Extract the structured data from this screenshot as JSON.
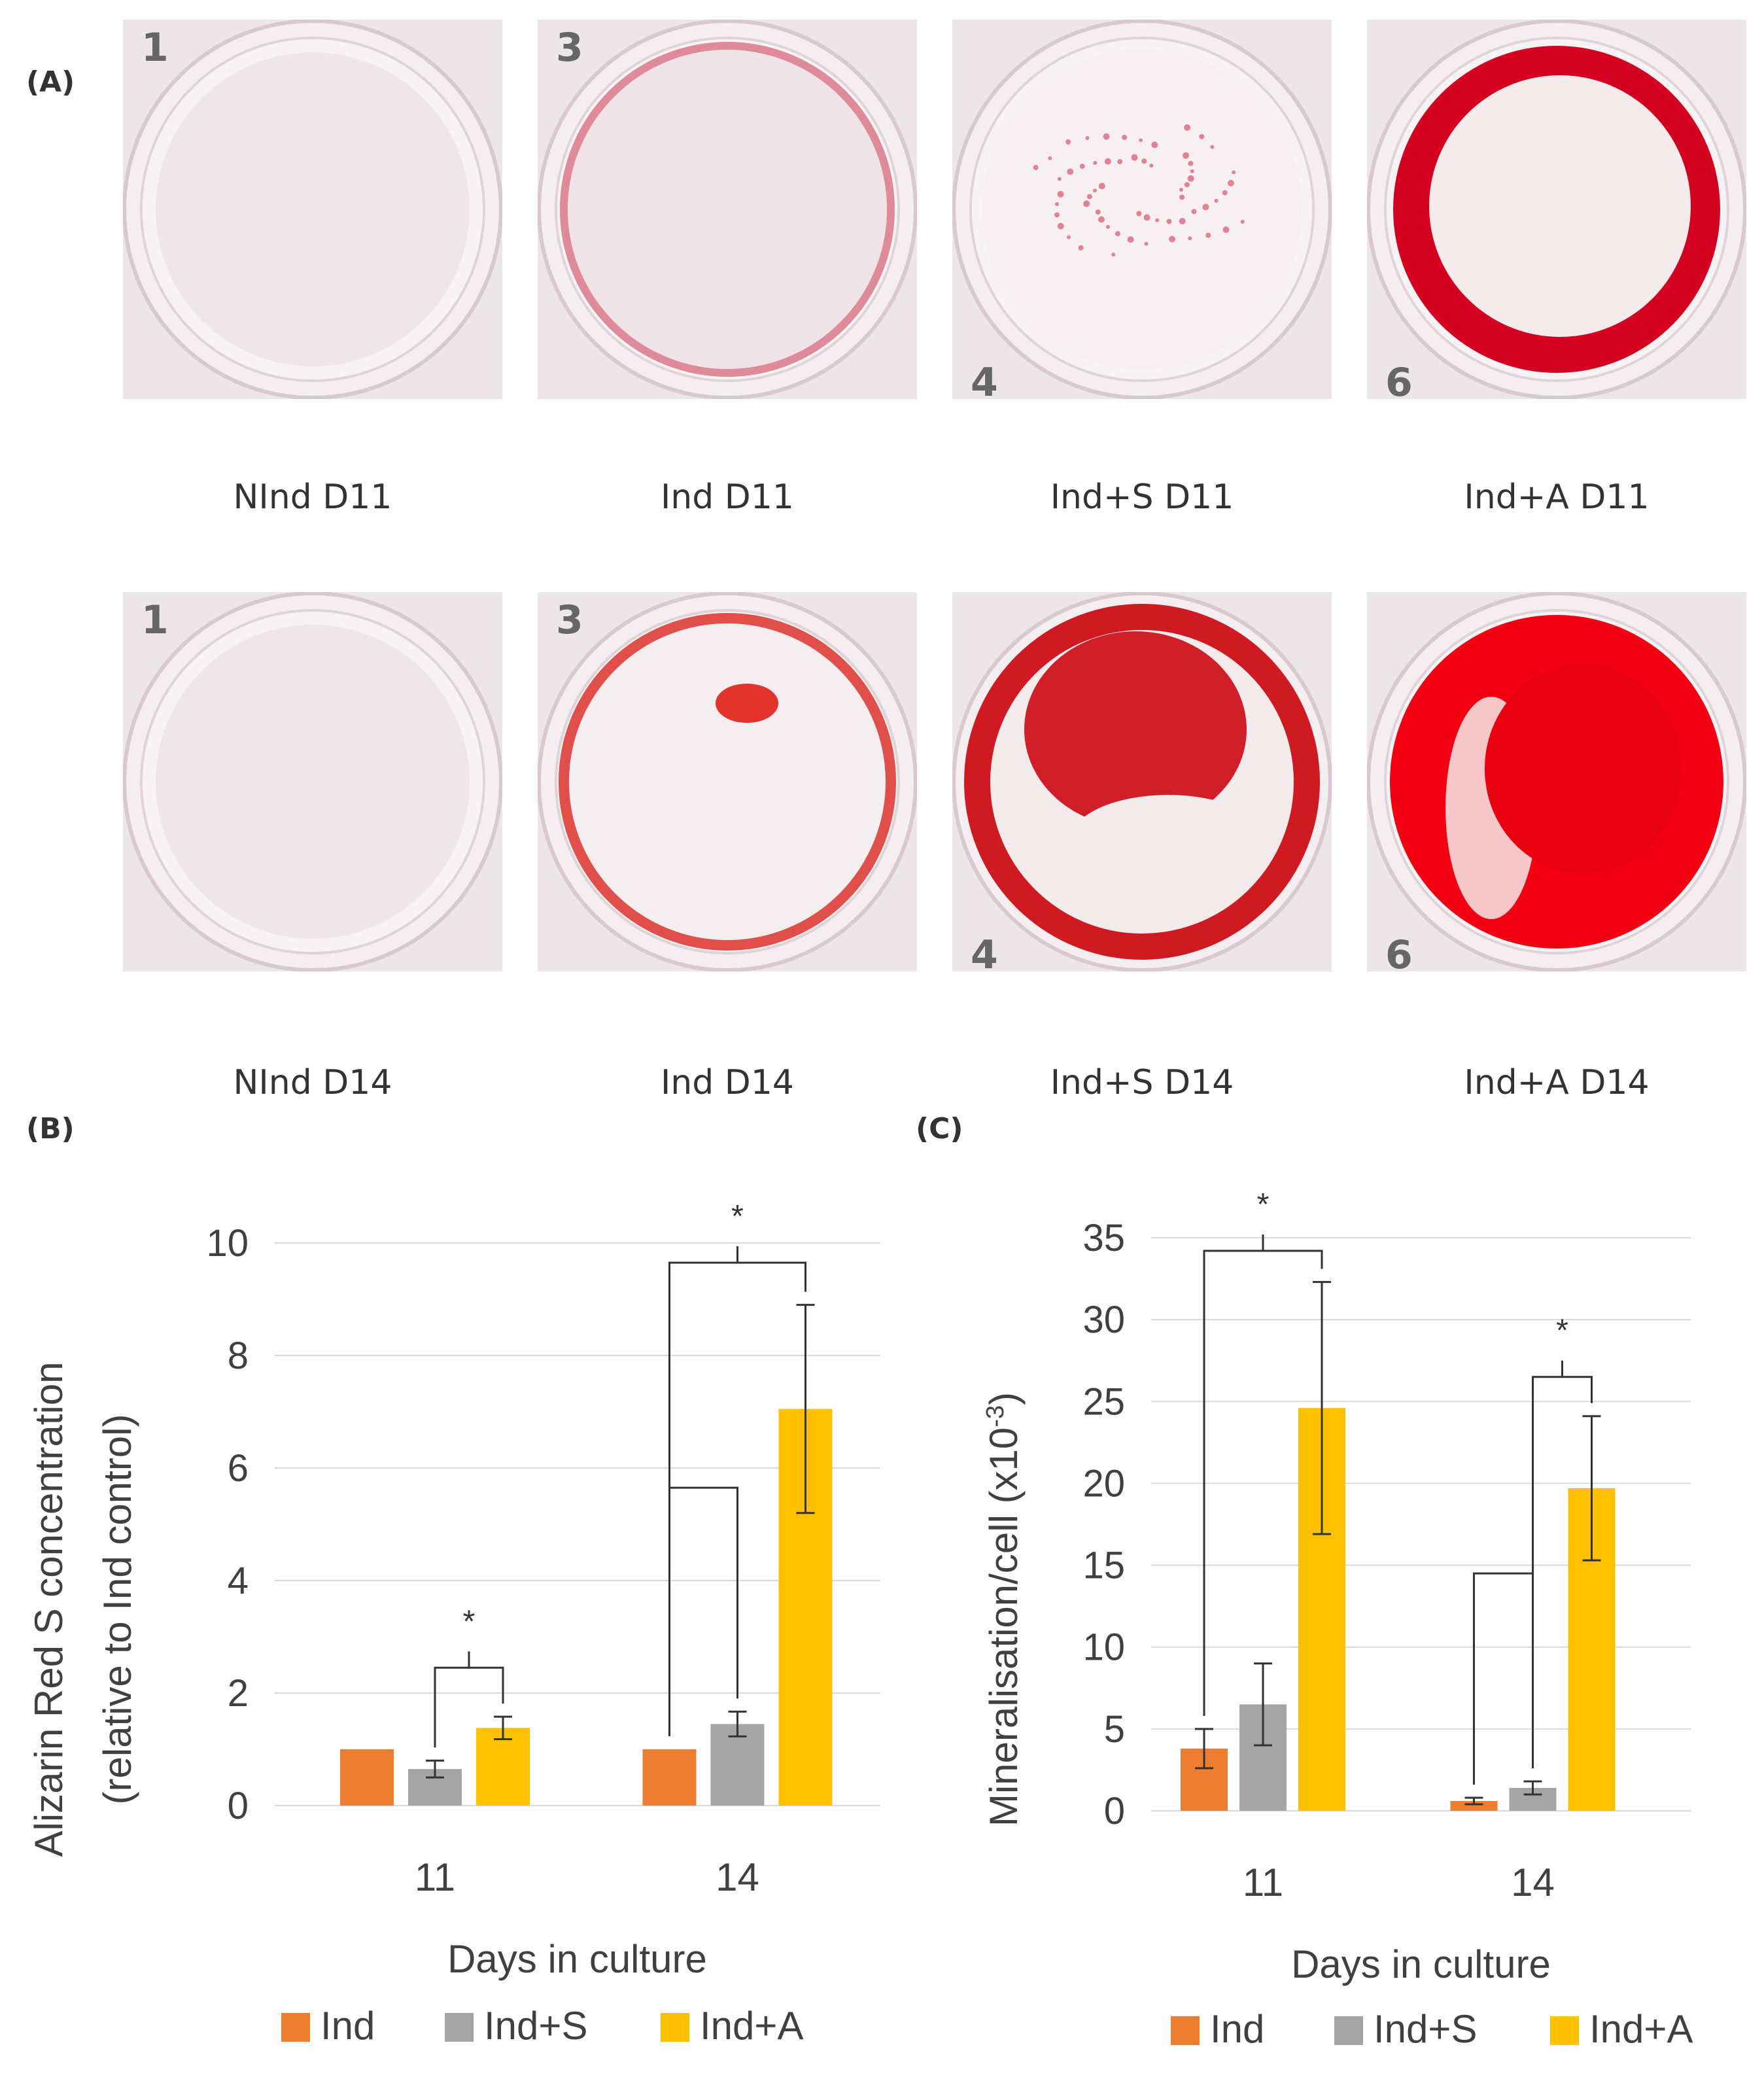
{
  "panels": {
    "a_label": "(A)",
    "b_label": "(B)",
    "c_label": "(C)"
  },
  "wells": [
    {
      "number": "1",
      "caption": "NInd D11",
      "stain": "faint"
    },
    {
      "number": "3",
      "caption": "Ind D11",
      "stain": "ring-light"
    },
    {
      "number": "4",
      "caption": "Ind+S D11",
      "stain": "speckle"
    },
    {
      "number": "6",
      "caption": "Ind+A D11",
      "stain": "ring-strong"
    },
    {
      "number": "1",
      "caption": "NInd D14",
      "stain": "faint"
    },
    {
      "number": "3",
      "caption": "Ind D14",
      "stain": "spot"
    },
    {
      "number": "4",
      "caption": "Ind+S D14",
      "stain": "patch"
    },
    {
      "number": "6",
      "caption": "Ind+A D14",
      "stain": "full"
    }
  ],
  "colors": {
    "ind": "#ED7D31",
    "ind_s": "#A5A5A5",
    "ind_a": "#FFC000",
    "grid": "#D9D9D9",
    "text": "#404040",
    "stain": "#E0001B"
  },
  "chart_data": [
    {
      "type": "bar",
      "categories": [
        "11",
        "14"
      ],
      "xlabel": "Days in culture",
      "ylabel": "Alizarin Red S concentration",
      "ylabel_line2": "(relative to Ind control)",
      "ylim": [
        0,
        10
      ],
      "yticks": [
        0,
        2,
        4,
        6,
        8,
        10
      ],
      "grid": true,
      "legend": "bottom",
      "series": [
        {
          "name": "Ind",
          "values": [
            1.0,
            1.0
          ],
          "errors": [
            0,
            0
          ]
        },
        {
          "name": "Ind+S",
          "values": [
            0.65,
            1.45
          ],
          "errors": [
            0.15,
            0.22
          ]
        },
        {
          "name": "Ind+A",
          "values": [
            1.38,
            7.05
          ],
          "errors": [
            0.2,
            1.85
          ]
        }
      ],
      "annotations": [
        {
          "text": "*",
          "group": 0,
          "from": 1,
          "to": 2,
          "level": 2.45
        },
        {
          "text": "*",
          "group": 1,
          "from": 0,
          "to": 2,
          "level": 9.65,
          "inner": {
            "from": 0,
            "to": 1,
            "level": 5.65
          }
        }
      ]
    },
    {
      "type": "bar",
      "categories": [
        "11",
        "14"
      ],
      "xlabel": "Days in culture",
      "ylabel": "Mineralisation/cell (x10",
      "ylabel_sup": "-3",
      "ylabel_end": ")",
      "ylim": [
        0,
        35
      ],
      "yticks": [
        0,
        5,
        10,
        15,
        20,
        25,
        30,
        35
      ],
      "grid": true,
      "legend": "bottom",
      "series": [
        {
          "name": "Ind",
          "values": [
            3.8,
            0.6
          ],
          "errors": [
            1.2,
            0.2
          ]
        },
        {
          "name": "Ind+S",
          "values": [
            6.5,
            1.4
          ],
          "errors": [
            2.5,
            0.4
          ]
        },
        {
          "name": "Ind+A",
          "values": [
            24.6,
            19.7
          ],
          "errors": [
            7.7,
            4.4
          ]
        }
      ],
      "annotations": [
        {
          "text": "*",
          "group": 0,
          "from": 0,
          "to": 2,
          "level": 34.2
        },
        {
          "text": "*",
          "group": 1,
          "from": 1,
          "to": 2,
          "level": 26.5,
          "outer_from": 0,
          "outer_level": 14.5
        }
      ]
    }
  ]
}
